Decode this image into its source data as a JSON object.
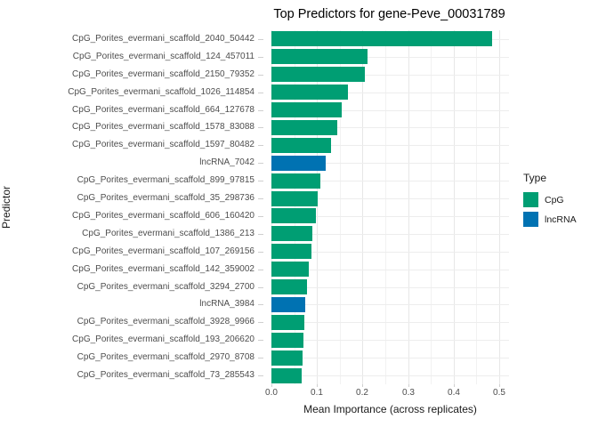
{
  "chart_data": {
    "type": "bar",
    "orientation": "horizontal",
    "title": "Top Predictors for gene-Peve_00031789",
    "xlabel": "Mean Importance (across replicates)",
    "ylabel": "Predictor",
    "xlim": [
      0,
      0.5
    ],
    "x_ticks": [
      0.0,
      0.1,
      0.2,
      0.3,
      0.4,
      0.5
    ],
    "x_tick_labels": [
      "0.0",
      "0.1",
      "0.2",
      "0.3",
      "0.4",
      "0.5"
    ],
    "grid": true,
    "grid_minor_step": 0.05,
    "legend": {
      "title": "Type",
      "position": "right",
      "entries": [
        {
          "label": "CpG",
          "color": "#009E73"
        },
        {
          "label": "lncRNA",
          "color": "#0072B2"
        }
      ]
    },
    "bars": [
      {
        "label": "CpG_Porites_evermani_scaffold_2040_50442",
        "type": "CpG",
        "value": 0.485
      },
      {
        "label": "CpG_Porites_evermani_scaffold_124_457011",
        "type": "CpG",
        "value": 0.21
      },
      {
        "label": "CpG_Porites_evermani_scaffold_2150_79352",
        "type": "CpG",
        "value": 0.205
      },
      {
        "label": "CpG_Porites_evermani_scaffold_1026_114854",
        "type": "CpG",
        "value": 0.168
      },
      {
        "label": "CpG_Porites_evermani_scaffold_664_127678",
        "type": "CpG",
        "value": 0.155
      },
      {
        "label": "CpG_Porites_evermani_scaffold_1578_83088",
        "type": "CpG",
        "value": 0.145
      },
      {
        "label": "CpG_Porites_evermani_scaffold_1597_80482",
        "type": "CpG",
        "value": 0.13
      },
      {
        "label": "lncRNA_7042",
        "type": "lncRNA",
        "value": 0.12
      },
      {
        "label": "CpG_Porites_evermani_scaffold_899_97815",
        "type": "CpG",
        "value": 0.107
      },
      {
        "label": "CpG_Porites_evermani_scaffold_35_298736",
        "type": "CpG",
        "value": 0.101
      },
      {
        "label": "CpG_Porites_evermani_scaffold_606_160420",
        "type": "CpG",
        "value": 0.098
      },
      {
        "label": "CpG_Porites_evermani_scaffold_1386_213",
        "type": "CpG",
        "value": 0.09
      },
      {
        "label": "CpG_Porites_evermani_scaffold_107_269156",
        "type": "CpG",
        "value": 0.087
      },
      {
        "label": "CpG_Porites_evermani_scaffold_142_359002",
        "type": "CpG",
        "value": 0.083
      },
      {
        "label": "CpG_Porites_evermani_scaffold_3294_2700",
        "type": "CpG",
        "value": 0.078
      },
      {
        "label": "lncRNA_3984",
        "type": "lncRNA",
        "value": 0.075
      },
      {
        "label": "CpG_Porites_evermani_scaffold_3928_9966",
        "type": "CpG",
        "value": 0.073
      },
      {
        "label": "CpG_Porites_evermani_scaffold_193_206620",
        "type": "CpG",
        "value": 0.071
      },
      {
        "label": "CpG_Porites_evermani_scaffold_2970_8708",
        "type": "CpG",
        "value": 0.068
      },
      {
        "label": "CpG_Porites_evermani_scaffold_73_285543",
        "type": "CpG",
        "value": 0.066
      }
    ],
    "colors": {
      "CpG": "#009E73",
      "lncRNA": "#0072B2"
    }
  }
}
